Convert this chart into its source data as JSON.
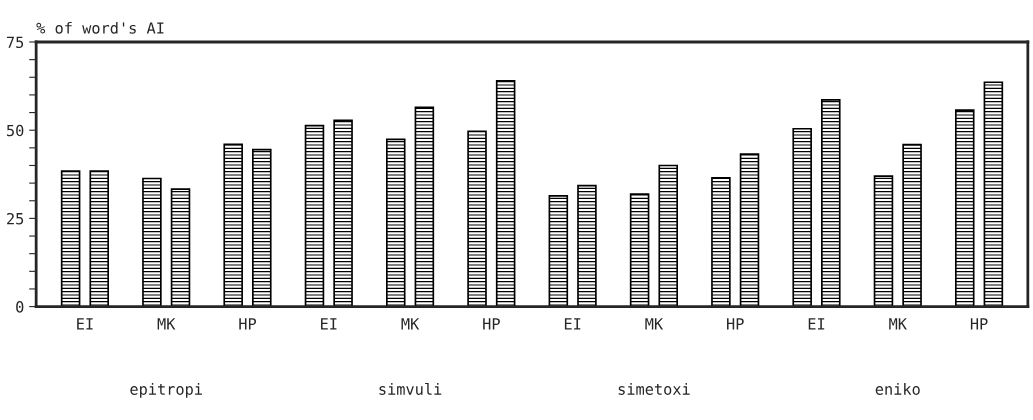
{
  "chart_data": {
    "type": "bar",
    "ylabel": "% of word's AI",
    "categories": [
      "EI",
      "MK",
      "HP",
      "EI",
      "MK",
      "HP",
      "EI",
      "MK",
      "HP",
      "EI",
      "MK",
      "HP"
    ],
    "series": [
      {
        "color": "#000000",
        "values": [
          38.4,
          36.3,
          46,
          51.3,
          47.4,
          49.7,
          31.4,
          31.9,
          36.5,
          50.4,
          37,
          55.7
        ]
      },
      {
        "color": "#000000",
        "values": [
          38.4,
          33.3,
          44.5,
          52.8,
          56.5,
          64,
          34.3,
          40,
          43.2,
          58.6,
          45.9,
          63.6
        ]
      }
    ],
    "ylim": [
      0,
      75
    ],
    "yticks": [
      0,
      {
        "value": 5,
        "label": null
      },
      {
        "value": 10,
        "label": null
      },
      {
        "value": 15,
        "label": null
      },
      {
        "value": 20,
        "label": null
      },
      25,
      {
        "value": 30,
        "label": null
      },
      {
        "value": 35,
        "label": null
      },
      {
        "value": 40,
        "label": null
      },
      {
        "value": 45,
        "label": null
      },
      50,
      {
        "value": 55,
        "label": null
      },
      {
        "value": 60,
        "label": null
      },
      {
        "value": 65,
        "label": null
      },
      {
        "value": 70,
        "label": null
      },
      75
    ],
    "annotations": [
      "epitropi",
      "simvuli",
      "simetoxi",
      "eniko"
    ],
    "grid": false,
    "legend": false
  }
}
